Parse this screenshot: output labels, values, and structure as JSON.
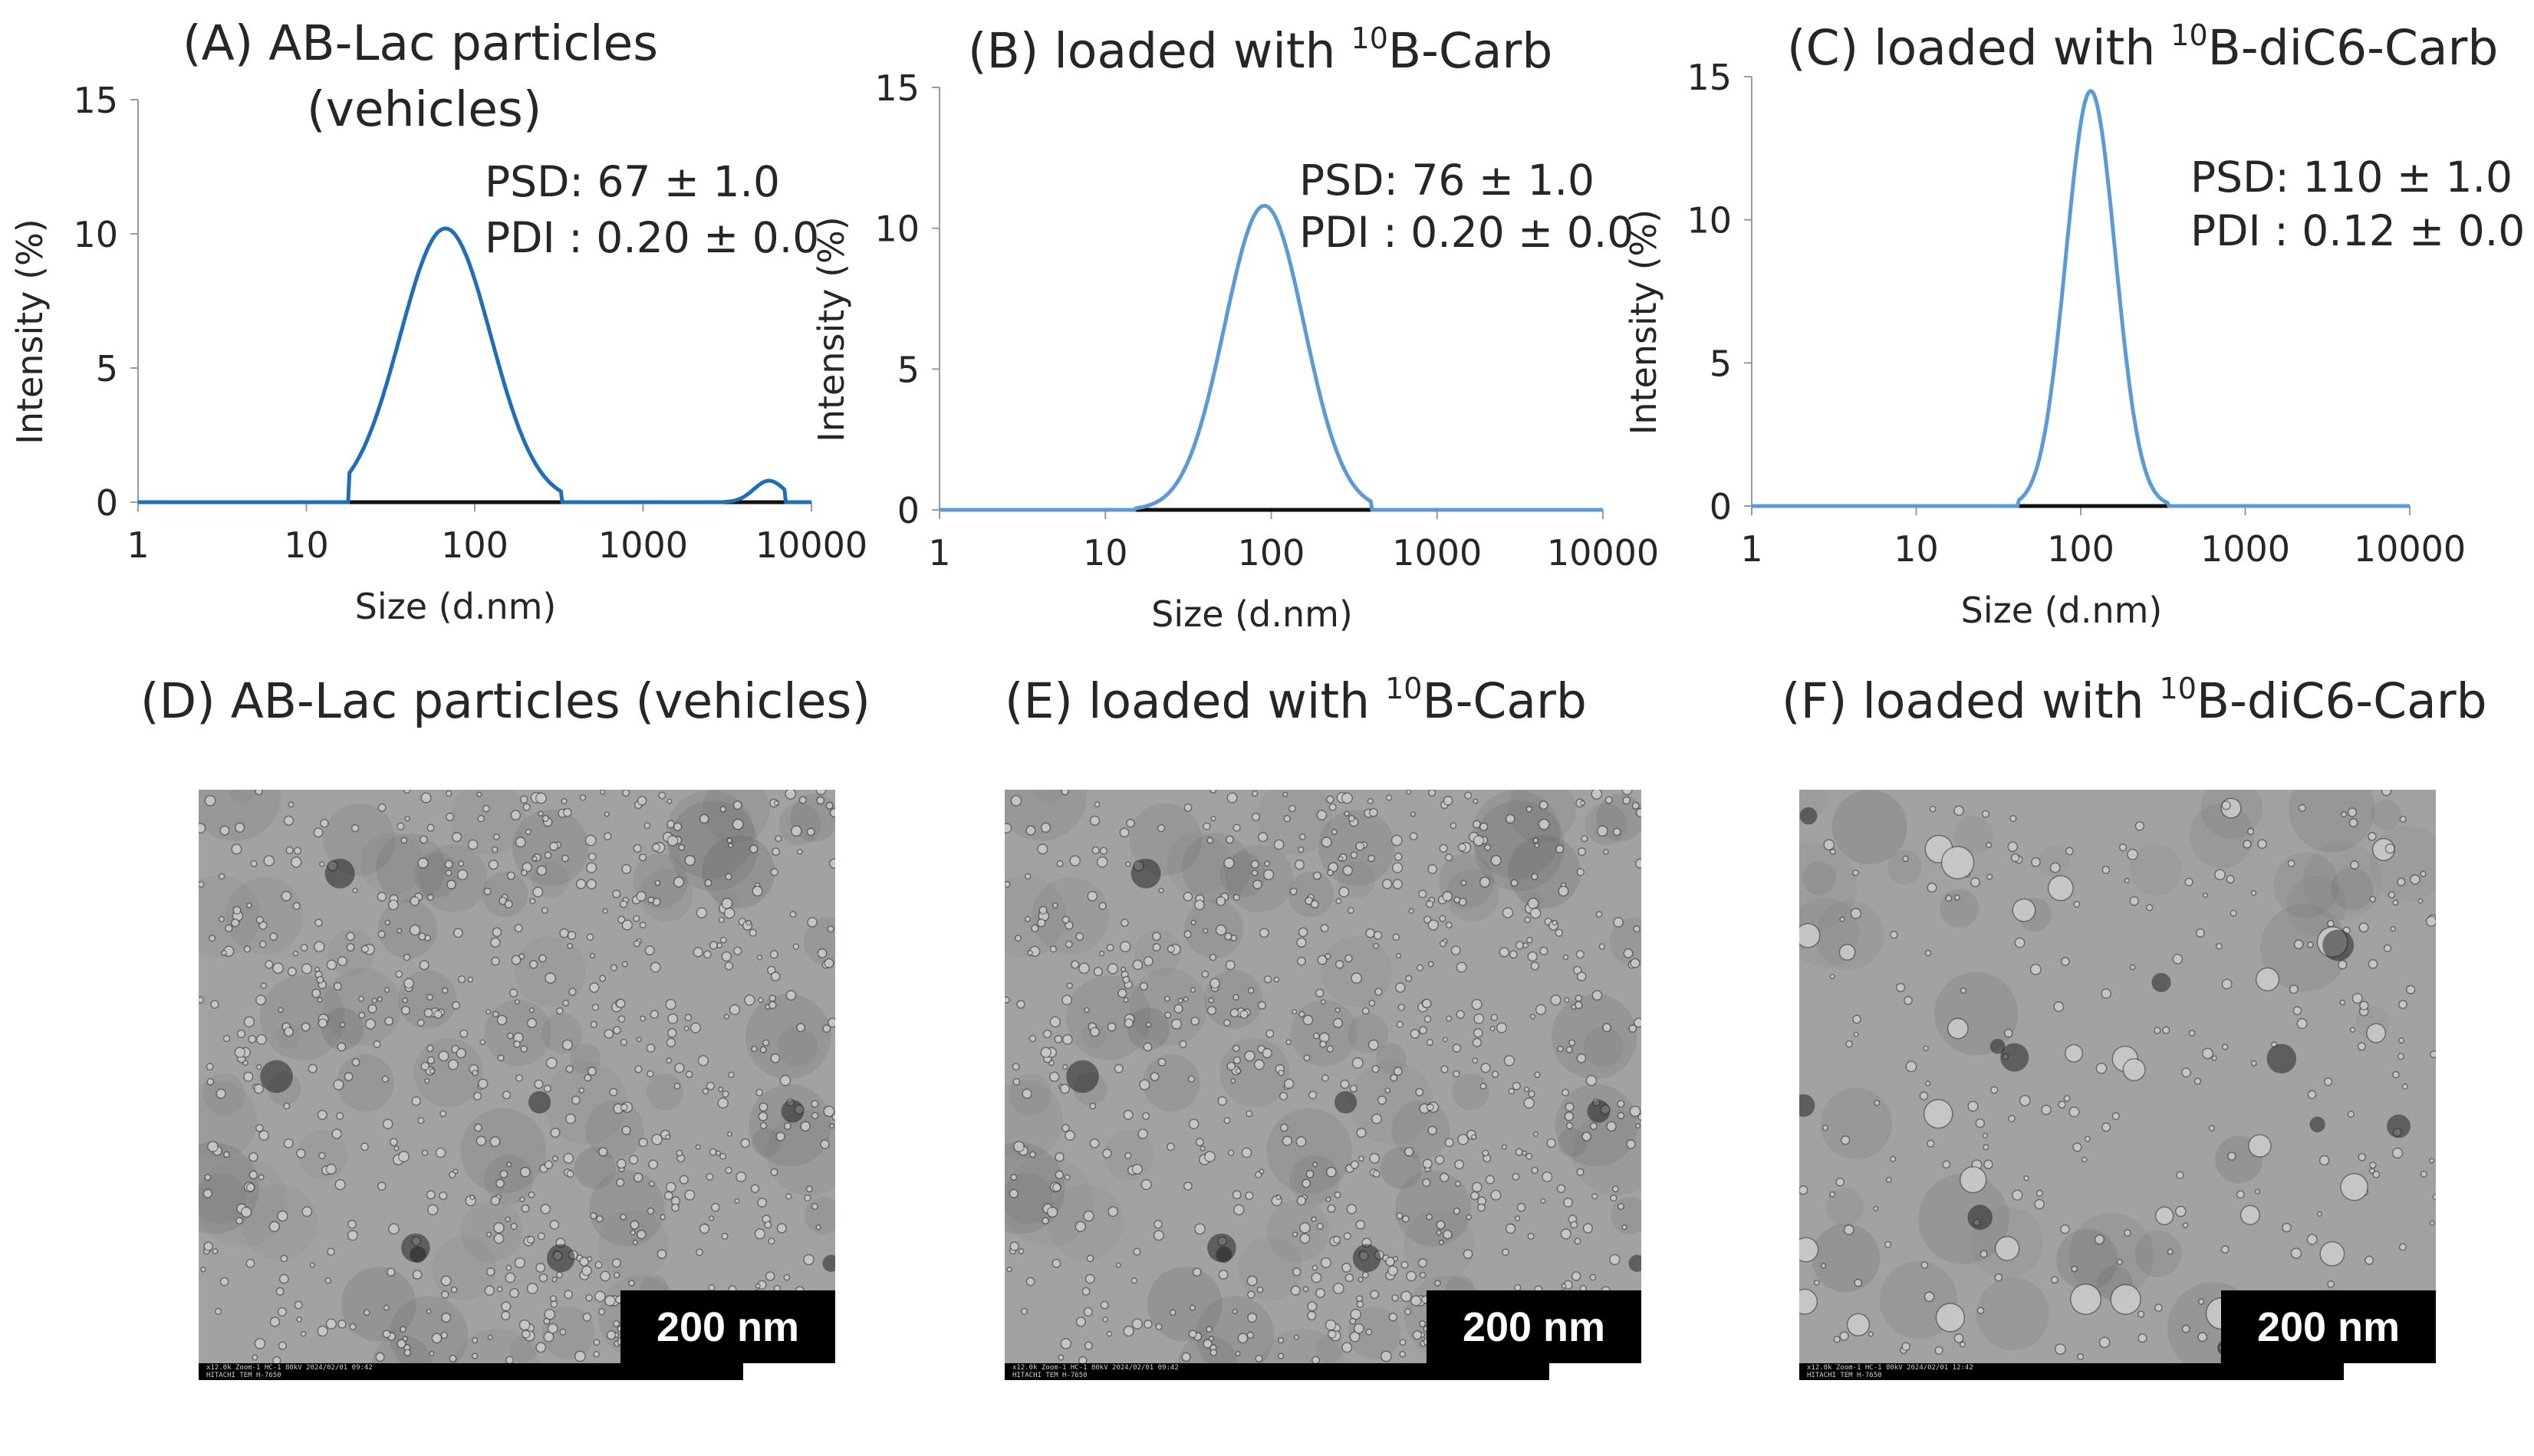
{
  "chart_data": [
    {
      "type": "line",
      "panel": "A",
      "title_pre": "(A) AB-Lac particles",
      "title_line2": "(vehicles)",
      "xlabel": "Size (d.nm)",
      "ylabel": "Intensity (%)",
      "xscale": "log",
      "xlim": [
        1,
        10000
      ],
      "ylim": [
        0,
        15
      ],
      "xticks": [
        "1",
        "10",
        "100",
        "1000",
        "10000"
      ],
      "yticks": [
        "0",
        "5",
        "10",
        "15"
      ],
      "color": "#1f6fb8",
      "peak_center": 67,
      "peak_height": 10.2,
      "peak_width": 0.27,
      "lower_bound": 18,
      "upper_bound": 330,
      "small_peak_center": 5600,
      "small_peak_height": 0.8,
      "small_peak_width": 0.09,
      "small_lower_bound": 3000,
      "small_upper_bound": 7000,
      "psd": "PSD: 67 ± 1.0",
      "pdi": "PDI : 0.20 ± 0.0"
    },
    {
      "type": "line",
      "panel": "B",
      "title_pre": "(B) loaded with ",
      "title_sup": "10",
      "title_post": "B-Carb",
      "xlabel": "Size (d.nm)",
      "ylabel": "Intensity (%)",
      "xscale": "log",
      "xlim": [
        1,
        10000
      ],
      "ylim": [
        0,
        15
      ],
      "xticks": [
        "1",
        "10",
        "100",
        "1000",
        "10000"
      ],
      "yticks": [
        "0",
        "5",
        "10",
        "15"
      ],
      "color": "#5b9bd5",
      "peak_center": 91,
      "peak_height": 10.8,
      "peak_width": 0.24,
      "lower_bound": 15,
      "upper_bound": 400,
      "psd": "PSD: 76 ± 1.0",
      "pdi": "PDI : 0.20 ± 0.0"
    },
    {
      "type": "line",
      "panel": "C",
      "title_pre": "(C) loaded with ",
      "title_sup": "10",
      "title_post": "B-diC6-Carb",
      "xlabel": "Size (d.nm)",
      "ylabel": "Intensity (%)",
      "xscale": "log",
      "xlim": [
        1,
        10000
      ],
      "ylim": [
        0,
        15
      ],
      "xticks": [
        "1",
        "10",
        "100",
        "1000",
        "10000"
      ],
      "yticks": [
        "0",
        "5",
        "10",
        "15"
      ],
      "color": "#5b9bd5",
      "peak_center": 115,
      "peak_height": 14.5,
      "peak_width": 0.15,
      "lower_bound": 42,
      "upper_bound": 340,
      "psd": "PSD: 110 ± 1.0",
      "pdi": "PDI : 0.12 ± 0.0"
    }
  ],
  "tem_panels": [
    {
      "panel": "D",
      "title_pre": "(D) AB-Lac particles (vehicles)",
      "scalebar": "200 nm",
      "footer": "x12.0k Zoom-1 HC-1 80kV 2024/02/01 09:42\nHITACHI TEM H-7650",
      "style": "fine"
    },
    {
      "panel": "E",
      "title_pre": "(E) loaded with ",
      "title_sup": "10",
      "title_post": "B-Carb",
      "scalebar": "200 nm",
      "footer": "x12.0k Zoom-1 HC-1 80kV 2024/02/01 09:42\nHITACHI TEM H-7650",
      "style": "fine"
    },
    {
      "panel": "F",
      "title_pre": "(F) loaded with ",
      "title_sup": "10",
      "title_post": "B-diC6-Carb",
      "scalebar": "200 nm",
      "footer": "x12.0k Zoom-1 HC-1 80kV 2024/02/01 12:42\nHITACHI TEM H-7650",
      "style": "coarse"
    }
  ]
}
